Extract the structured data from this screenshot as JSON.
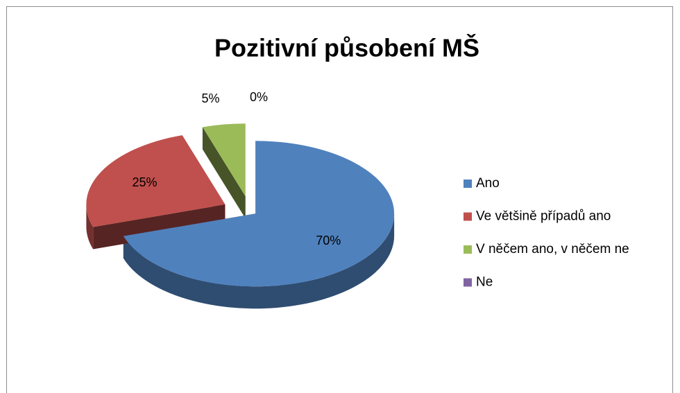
{
  "chart_data": {
    "type": "pie",
    "title": "Pozitivní působení MŠ",
    "categories": [
      "Ano",
      "Ve většině případů ano",
      "V něčem ano, v něčem ne",
      "Ne"
    ],
    "values": [
      70,
      25,
      5,
      0
    ],
    "value_labels": [
      "70%",
      "25%",
      "5%",
      "0%"
    ],
    "colors": [
      "#4f81bd",
      "#c0504d",
      "#9bbb59",
      "#8064a2"
    ],
    "legend": "right"
  }
}
